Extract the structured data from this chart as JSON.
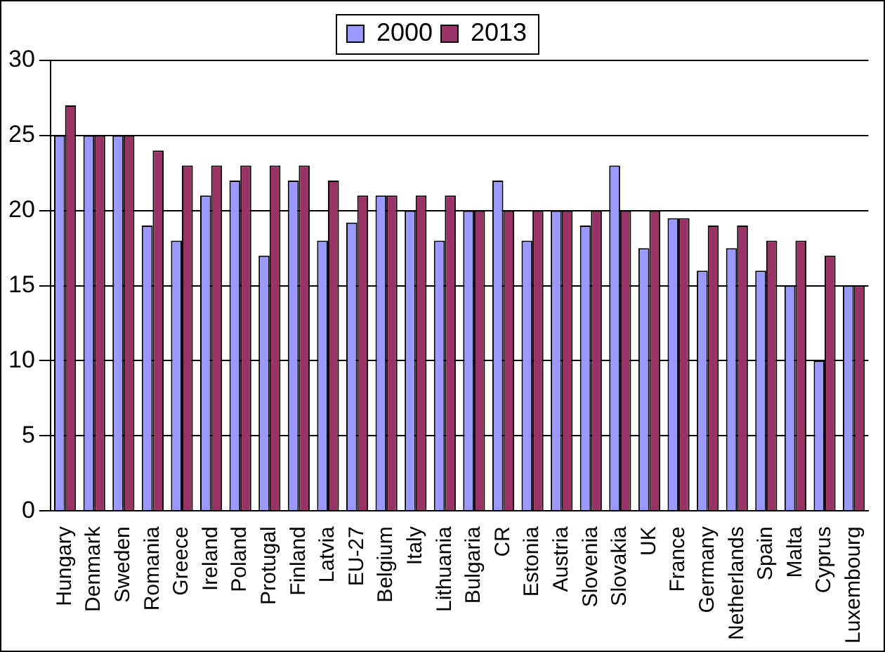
{
  "chart_data": {
    "type": "bar",
    "categories": [
      "Hungary",
      "Denmark",
      "Sweden",
      "Romania",
      "Greece",
      "Ireland",
      "Poland",
      "Protugal",
      "Finland",
      "Latvia",
      "EU-27",
      "Belgium",
      "Italy",
      "Lithuania",
      "Bulgaria",
      "CR",
      "Estonia",
      "Austria",
      "Slovenia",
      "Slovakia",
      "UK",
      "France",
      "Germany",
      "Netherlands",
      "Spain",
      "Malta",
      "Cyprus",
      "Luxembourg"
    ],
    "series": [
      {
        "name": "2000",
        "color": "#9999ff",
        "values": [
          25,
          25,
          25,
          19,
          18,
          21,
          22,
          17,
          22,
          18,
          19.2,
          21,
          20,
          18,
          20,
          22,
          18,
          20,
          19,
          23,
          17.5,
          19.5,
          16,
          17.5,
          16,
          15,
          10,
          15
        ]
      },
      {
        "name": "2013",
        "color": "#993366",
        "values": [
          27,
          25,
          25,
          24,
          23,
          23,
          23,
          23,
          23,
          22,
          21,
          21,
          21,
          21,
          20,
          20,
          20,
          20,
          20,
          20,
          20,
          19.5,
          19,
          19,
          18,
          18,
          17,
          15
        ]
      }
    ],
    "ylim": [
      0,
      30
    ],
    "yticks": [
      0,
      5,
      10,
      15,
      20,
      25,
      30
    ],
    "grid": "y",
    "legend": "top"
  }
}
